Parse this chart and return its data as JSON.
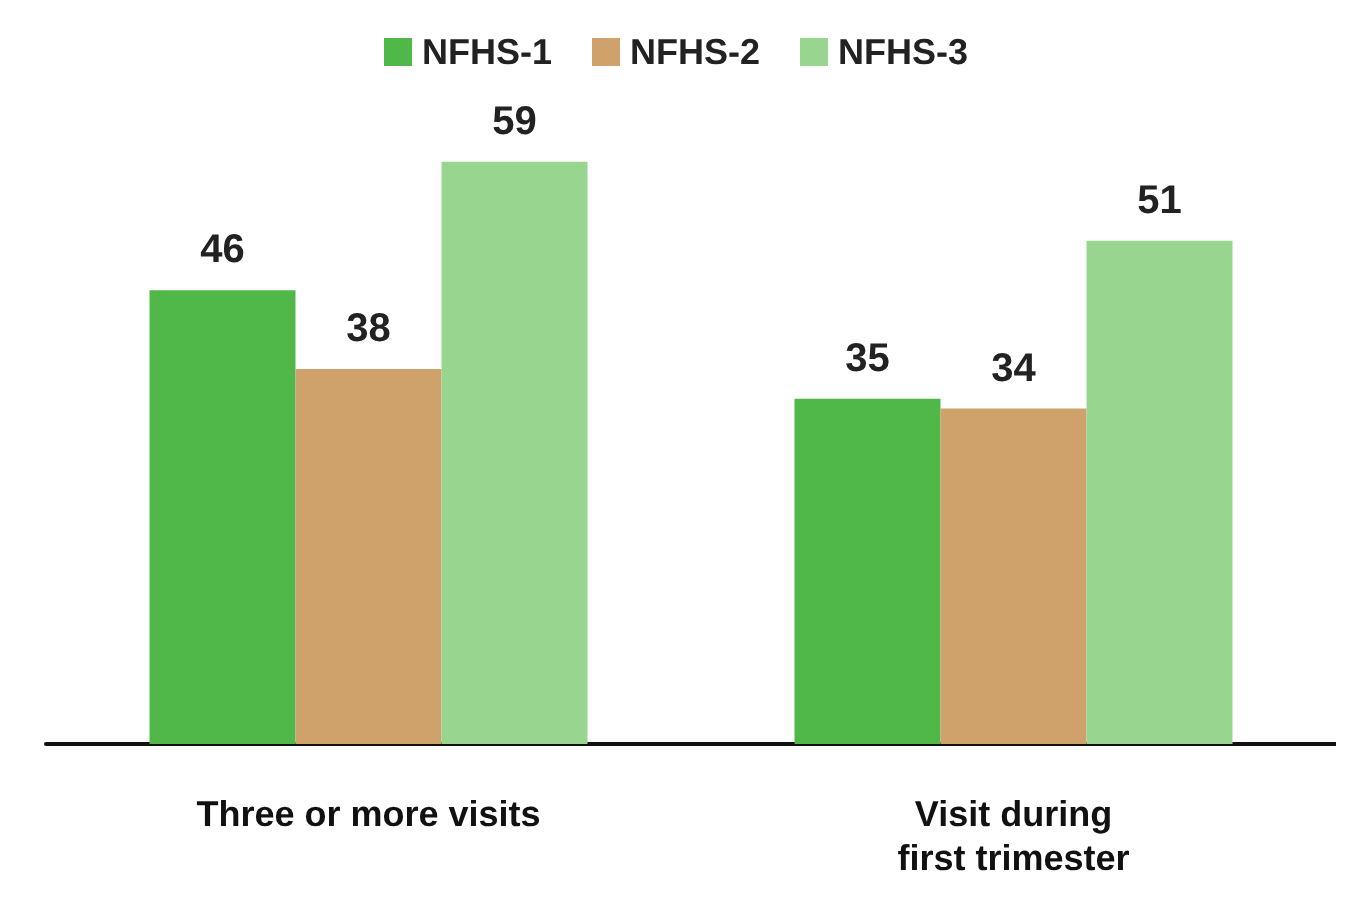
{
  "chart_data": {
    "type": "bar",
    "categories": [
      "Three or more visits",
      "Visit during\nfirst trimester"
    ],
    "series": [
      {
        "name": "NFHS-1",
        "color": "#50b848",
        "values": [
          46,
          35
        ]
      },
      {
        "name": "NFHS-2",
        "color": "#cfa26b",
        "values": [
          38,
          34
        ]
      },
      {
        "name": "NFHS-3",
        "color": "#98d58f",
        "values": [
          59,
          51
        ]
      }
    ],
    "data_labels": true,
    "legend": "top"
  }
}
